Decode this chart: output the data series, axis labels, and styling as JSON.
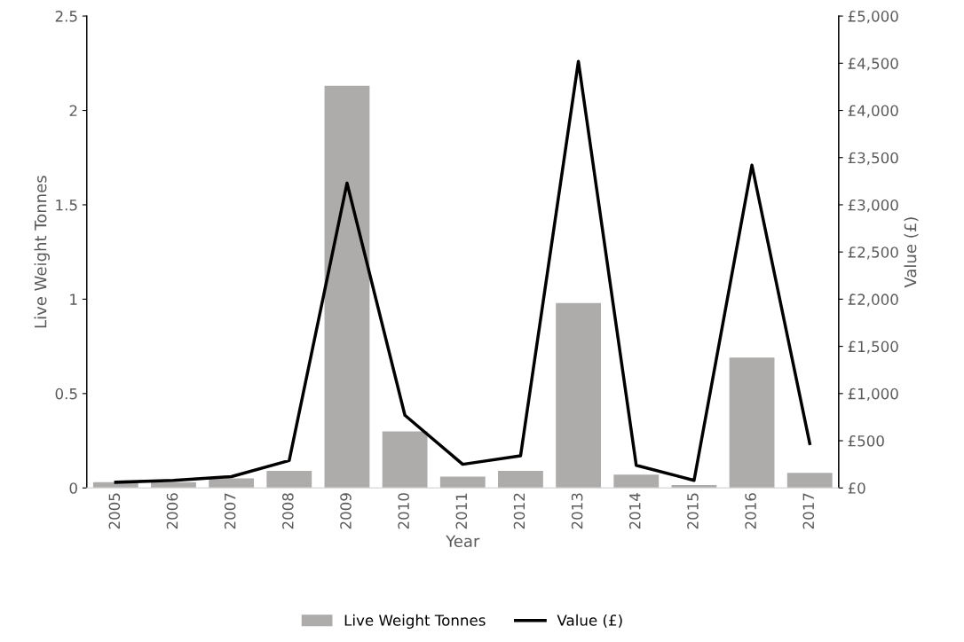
{
  "chart_data": {
    "type": "bar",
    "xlabel": "Year",
    "ylabel": "Live Weight Tonnes",
    "y2label": "Value (£)",
    "categories": [
      "2005",
      "2006",
      "2007",
      "2008",
      "2009",
      "2010",
      "2011",
      "2012",
      "2013",
      "2014",
      "2015",
      "2016",
      "2017"
    ],
    "series": [
      {
        "name": "Live Weight Tonnes",
        "color": "#aeabab",
        "values": [
          0.03,
          0.03,
          0.05,
          0.09,
          2.13,
          0.3,
          0.06,
          0.09,
          0.98,
          0.07,
          0.015,
          0.69,
          0.08
        ]
      },
      {
        "name": "Value (£)",
        "type": "line",
        "axis": "y2",
        "color": "#000000",
        "values": [
          60,
          80,
          120,
          290,
          3230,
          770,
          250,
          340,
          4520,
          240,
          80,
          3420,
          470
        ]
      }
    ],
    "ylim": [
      0,
      2.5
    ],
    "yticks": [
      0,
      0.5,
      1,
      1.5,
      2,
      2.5
    ],
    "y2lim": [
      0,
      5000
    ],
    "y2ticks": [
      {
        "value": 0,
        "label": "£0"
      },
      {
        "value": 500,
        "label": "£500"
      },
      {
        "value": 1000,
        "label": "£1,000"
      },
      {
        "value": 1500,
        "label": "£1,500"
      },
      {
        "value": 2000,
        "label": "£2,000"
      },
      {
        "value": 2500,
        "label": "£2,500"
      },
      {
        "value": 3000,
        "label": "£3,000"
      },
      {
        "value": 3500,
        "label": "£3,500"
      },
      {
        "value": 4000,
        "label": "£4,000"
      },
      {
        "value": 4500,
        "label": "£4,500"
      },
      {
        "value": 5000,
        "label": "£5,000"
      }
    ],
    "grid": false,
    "legend": "bottom",
    "marker": "none",
    "line_style": "solid"
  }
}
